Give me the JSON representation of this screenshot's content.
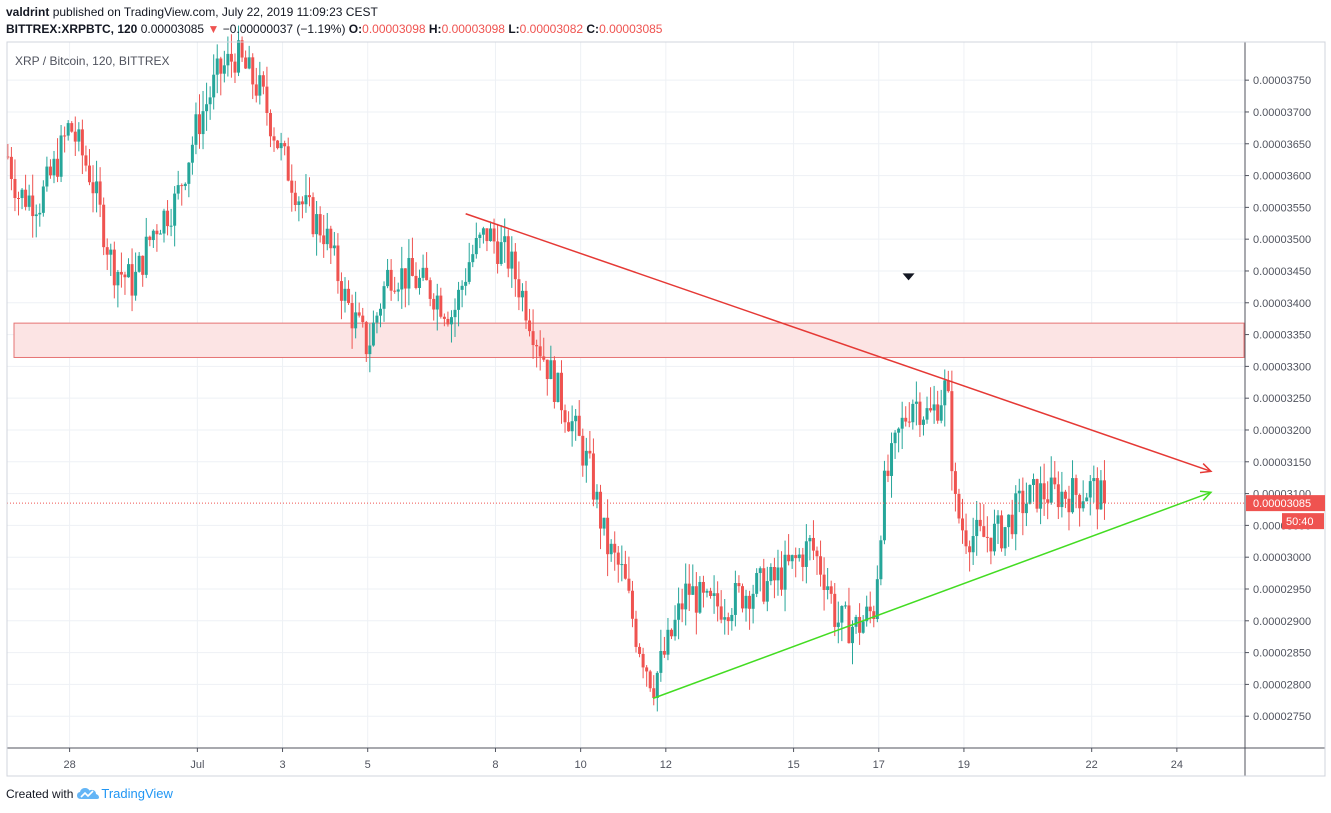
{
  "header": {
    "user": "valdrint",
    "published_text": "published on TradingView.com, July 22, 2019 11:09:23 CEST",
    "symbol": "BITTREX:XRPBTC, 120",
    "last": "0.00003085",
    "change_arrow": "▼",
    "change": "−0.00000037 (−1.19%)",
    "o_label": "O:",
    "o_value": "0.00003098",
    "h_label": "H:",
    "h_value": "0.00003098",
    "l_label": "L:",
    "l_value": "0.00003082",
    "c_label": "C:",
    "c_value": "0.00003085"
  },
  "footer": {
    "created_with": "Created with",
    "brand": "TradingView",
    "logo_icon": "tradingview-cloud-icon"
  },
  "chart_data": {
    "type": "candlestick",
    "title": "XRP / Bitcoin, 120, BITTREX",
    "y_ticks": [
      "0.00002750",
      "0.00002800",
      "0.00002850",
      "0.00002900",
      "0.00002950",
      "0.00003000",
      "0.00003050",
      "0.00003100",
      "0.00003150",
      "0.00003200",
      "0.00003250",
      "0.00003300",
      "0.00003350",
      "0.00003400",
      "0.00003450",
      "0.00003500",
      "0.00003550",
      "0.00003600",
      "0.00003650",
      "0.00003700",
      "0.00003750"
    ],
    "ylim": [
      2.7e-05,
      3.81e-05
    ],
    "x_ticks": [
      {
        "label": "28",
        "day": 0
      },
      {
        "label": "Jul",
        "day": 3
      },
      {
        "label": "3",
        "day": 5
      },
      {
        "label": "5",
        "day": 7
      },
      {
        "label": "8",
        "day": 10
      },
      {
        "label": "10",
        "day": 12
      },
      {
        "label": "12",
        "day": 14
      },
      {
        "label": "15",
        "day": 17
      },
      {
        "label": "17",
        "day": 19
      },
      {
        "label": "19",
        "day": 21
      },
      {
        "label": "22",
        "day": 24
      },
      {
        "label": "24",
        "day": 26
      }
    ],
    "xlim": [
      -1.47,
      27.6
    ],
    "last_price": {
      "label": "0.00003085",
      "value": 3.085e-05,
      "countdown": "50:40"
    },
    "support_zone": {
      "low": 3.314e-05,
      "high": 3.368e-05,
      "color": "#fce4e4",
      "border": "#e57373"
    },
    "trendlines": [
      {
        "name": "",
        "color": "#e53935",
        "from": {
          "day": 9.3,
          "price": 3.54e-05
        },
        "to": {
          "day": 26.8,
          "price": 3.135e-05
        }
      },
      {
        "name": "",
        "color": "#43dc22",
        "from": {
          "day": 13.7,
          "price": 2.778e-05
        },
        "to": {
          "day": 26.8,
          "price": 3.102e-05
        }
      }
    ],
    "marker": {
      "type": "down-triangle",
      "day": 19.7,
      "price": 3.44e-05
    },
    "colors": {
      "up": "#26a69a",
      "down": "#ef5350",
      "grid": "#eef1f5"
    },
    "candles_note": "",
    "path_anchors": [
      [
        -1.45,
        3.63e-05
      ],
      [
        -1.2,
        3.57e-05
      ],
      [
        -0.7,
        3.56e-05
      ],
      [
        -0.3,
        3.62e-05
      ],
      [
        0.0,
        3.68e-05
      ],
      [
        0.5,
        3.6e-05
      ],
      [
        1.0,
        3.46e-05
      ],
      [
        1.5,
        3.43e-05
      ],
      [
        2.0,
        3.52e-05
      ],
      [
        2.5,
        3.56e-05
      ],
      [
        3.0,
        3.68e-05
      ],
      [
        3.5,
        3.76e-05
      ],
      [
        3.9,
        3.79e-05
      ],
      [
        4.5,
        3.73e-05
      ],
      [
        5.0,
        3.63e-05
      ],
      [
        5.5,
        3.55e-05
      ],
      [
        6.0,
        3.51e-05
      ],
      [
        6.5,
        3.4e-05
      ],
      [
        7.0,
        3.33e-05
      ],
      [
        7.5,
        3.45e-05
      ],
      [
        8.0,
        3.44e-05
      ],
      [
        8.5,
        3.42e-05
      ],
      [
        9.0,
        3.38e-05
      ],
      [
        9.4,
        3.47e-05
      ],
      [
        9.8,
        3.51e-05
      ],
      [
        10.3,
        3.47e-05
      ],
      [
        10.6,
        3.42e-05
      ],
      [
        11.0,
        3.34e-05
      ],
      [
        11.4,
        3.27e-05
      ],
      [
        11.8,
        3.21e-05
      ],
      [
        12.2,
        3.14e-05
      ],
      [
        12.6,
        3.02e-05
      ],
      [
        13.0,
        2.97e-05
      ],
      [
        13.3,
        2.88e-05
      ],
      [
        13.7,
        2.8e-05
      ],
      [
        14.1,
        2.87e-05
      ],
      [
        14.5,
        2.95e-05
      ],
      [
        15.0,
        2.92e-05
      ],
      [
        15.5,
        2.93e-05
      ],
      [
        16.0,
        2.95e-05
      ],
      [
        16.5,
        2.96e-05
      ],
      [
        17.0,
        2.99e-05
      ],
      [
        17.4,
        3.02e-05
      ],
      [
        17.8,
        2.96e-05
      ],
      [
        18.0,
        2.9e-05
      ],
      [
        18.5,
        2.89e-05
      ],
      [
        18.9,
        2.92e-05
      ],
      [
        19.1,
        3.1e-05
      ],
      [
        19.5,
        3.2e-05
      ],
      [
        19.8,
        3.25e-05
      ],
      [
        20.2,
        3.22e-05
      ],
      [
        20.6,
        3.27e-05
      ],
      [
        20.8,
        3.08e-05
      ],
      [
        21.0,
        3.04e-05
      ],
      [
        21.4,
        3.03e-05
      ],
      [
        21.9,
        3.04e-05
      ],
      [
        22.3,
        3.08e-05
      ],
      [
        22.7,
        3.1e-05
      ],
      [
        23.2,
        3.1e-05
      ],
      [
        23.7,
        3.1e-05
      ],
      [
        24.0,
        3.11e-05
      ],
      [
        24.3,
        3.085e-05
      ]
    ]
  }
}
